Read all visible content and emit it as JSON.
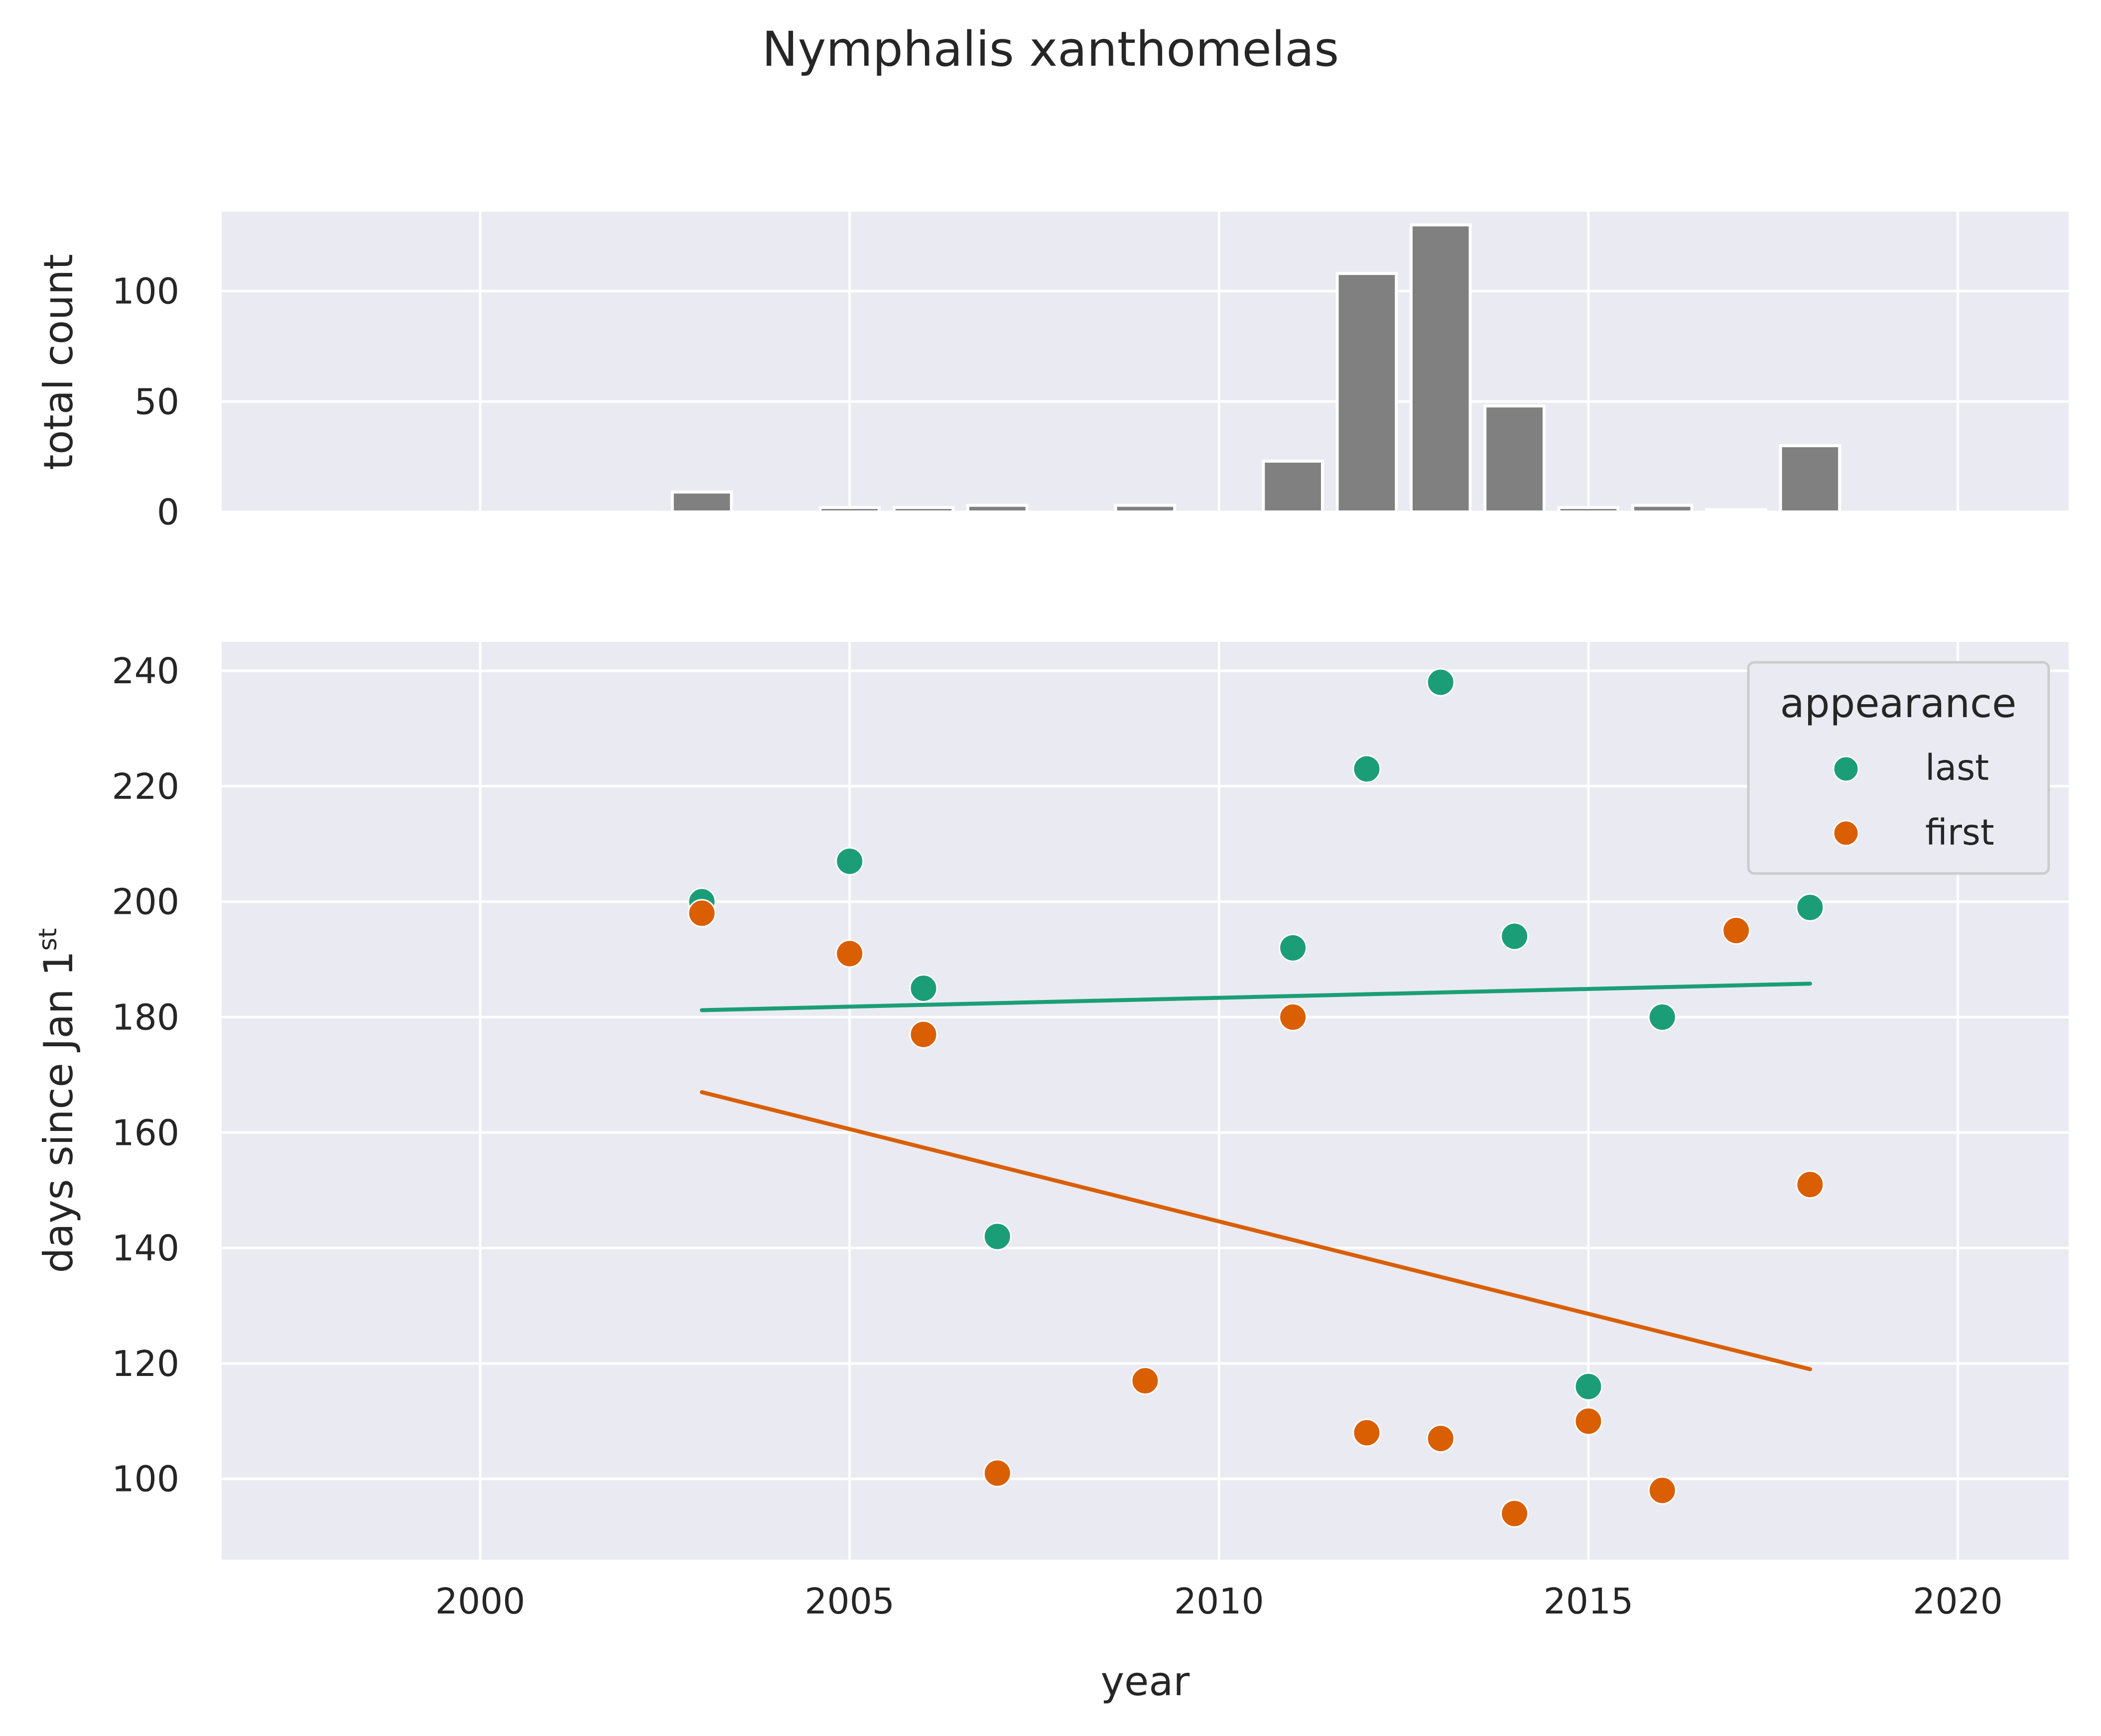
{
  "chart_data": {
    "title": "Nymphalis xanthomelas",
    "xlabel": "year",
    "xlim": [
      1996.5,
      2021.5
    ],
    "xticks": [
      2000,
      2005,
      2010,
      2015,
      2020
    ],
    "bar_panel": {
      "type": "bar",
      "ylabel": "total count",
      "ylim": [
        0,
        136
      ],
      "yticks": [
        0,
        50,
        100
      ],
      "color": "#808080",
      "edge_color": "#ffffff",
      "bars": [
        {
          "year": 2003,
          "value": 9
        },
        {
          "year": 2005,
          "value": 2
        },
        {
          "year": 2006,
          "value": 2
        },
        {
          "year": 2007,
          "value": 3
        },
        {
          "year": 2009,
          "value": 3
        },
        {
          "year": 2011,
          "value": 23
        },
        {
          "year": 2012,
          "value": 108
        },
        {
          "year": 2013,
          "value": 130
        },
        {
          "year": 2014,
          "value": 48
        },
        {
          "year": 2015,
          "value": 2
        },
        {
          "year": 2016,
          "value": 3
        },
        {
          "year": 2017,
          "value": 1
        },
        {
          "year": 2018,
          "value": 30
        }
      ]
    },
    "scatter_panel": {
      "type": "scatter",
      "ylabel_main": "days since Jan 1",
      "ylabel_sup": "st",
      "ylim": [
        86,
        245
      ],
      "yticks": [
        100,
        120,
        140,
        160,
        180,
        200,
        220,
        240
      ],
      "legend": {
        "title": "appearance",
        "position": "top-right"
      },
      "series": [
        {
          "name": "last",
          "color": "#1b9e77",
          "x": [
            2003,
            2005,
            2006,
            2007,
            2011,
            2012,
            2013,
            2014,
            2015,
            2016,
            2018
          ],
          "y": [
            200,
            207,
            185,
            142,
            192,
            223,
            238,
            194,
            116,
            180,
            199
          ],
          "trend": {
            "x": [
              2003,
              2018
            ],
            "y": [
              181.2,
              185.8
            ]
          }
        },
        {
          "name": "first",
          "color": "#d95f02",
          "x": [
            2003,
            2005,
            2006,
            2007,
            2009,
            2011,
            2012,
            2013,
            2014,
            2015,
            2016,
            2017,
            2018
          ],
          "y": [
            198,
            191,
            177,
            101,
            117,
            180,
            108,
            107,
            94,
            110,
            98,
            195,
            151
          ],
          "trend": {
            "x": [
              2003,
              2018
            ],
            "y": [
              167.0,
              119.0
            ]
          }
        }
      ]
    }
  }
}
